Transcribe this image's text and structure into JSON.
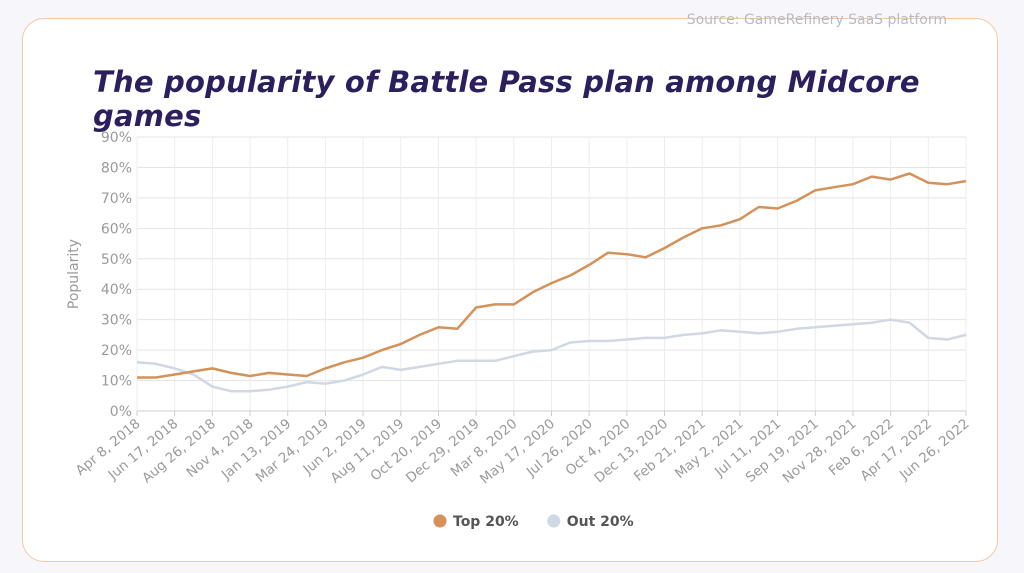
{
  "source": "Source: GameRefinery SaaS platform",
  "chart_data": {
    "type": "line",
    "title": "The popularity of Battle Pass plan among Midcore games",
    "y_label": "Popularity",
    "categories": [
      "Apr 8, 2018",
      null,
      "Jun 17, 2018",
      null,
      "Aug 26, 2018",
      null,
      "Nov 4, 2018",
      null,
      "Jan 13, 2019",
      null,
      "Mar 24, 2019",
      null,
      "Jun 2, 2019",
      null,
      "Aug 11, 2019",
      null,
      "Oct 20, 2019",
      null,
      "Dec 29, 2019",
      null,
      "Mar 8, 2020",
      null,
      "May 17, 2020",
      null,
      "Jul 26, 2020",
      null,
      "Oct 4, 2020",
      null,
      "Dec 13, 2020",
      null,
      "Feb 21, 2021",
      null,
      "May 2, 2021",
      null,
      "Jul 11, 2021",
      null,
      "Sep 19, 2021",
      null,
      "Nov 28, 2021",
      null,
      "Feb 6, 2022",
      null,
      "Apr 17, 2022",
      null,
      "Jun 26, 2022"
    ],
    "series": [
      {
        "name": "Top 20%",
        "color": "#d4915a",
        "values": [
          11,
          11,
          12,
          13,
          14,
          12.5,
          11.5,
          12.5,
          12,
          11.5,
          14,
          16,
          17.5,
          20,
          22,
          25,
          27.5,
          27,
          34,
          35,
          35,
          39,
          42,
          44.5,
          48,
          52,
          51.5,
          50.5,
          53.5,
          57,
          60,
          61,
          63,
          67,
          66.5,
          69,
          72.5,
          73.5,
          74.5,
          77,
          76,
          78,
          75,
          74.5,
          75.5
        ]
      },
      {
        "name": "Out 20%",
        "color": "#cfd8e3",
        "values": [
          16,
          15.5,
          14,
          12,
          8,
          6.5,
          6.5,
          7,
          8,
          9.5,
          9,
          10,
          12,
          14.5,
          13.5,
          14.5,
          15.5,
          16.5,
          16.5,
          16.5,
          18,
          19.5,
          20,
          22.5,
          23,
          23,
          23.5,
          24,
          24,
          25,
          25.5,
          26.5,
          26,
          25.5,
          26,
          27,
          27.5,
          28,
          28.5,
          29,
          30,
          29,
          24,
          23.5,
          25
        ]
      }
    ],
    "ylim": [
      0,
      90
    ],
    "yticks": [
      {
        "value": 0,
        "label": "0%"
      },
      {
        "value": 10,
        "label": "10%"
      },
      {
        "value": 20,
        "label": "20%"
      },
      {
        "value": 30,
        "label": "30%"
      },
      {
        "value": 40,
        "label": "40%"
      },
      {
        "value": 50,
        "label": "50%"
      },
      {
        "value": 60,
        "label": "60%"
      },
      {
        "value": 70,
        "label": "70%"
      },
      {
        "value": 80,
        "label": "80%"
      },
      {
        "value": 90,
        "label": "90%"
      }
    ],
    "grid": true,
    "legend": "bottom"
  }
}
